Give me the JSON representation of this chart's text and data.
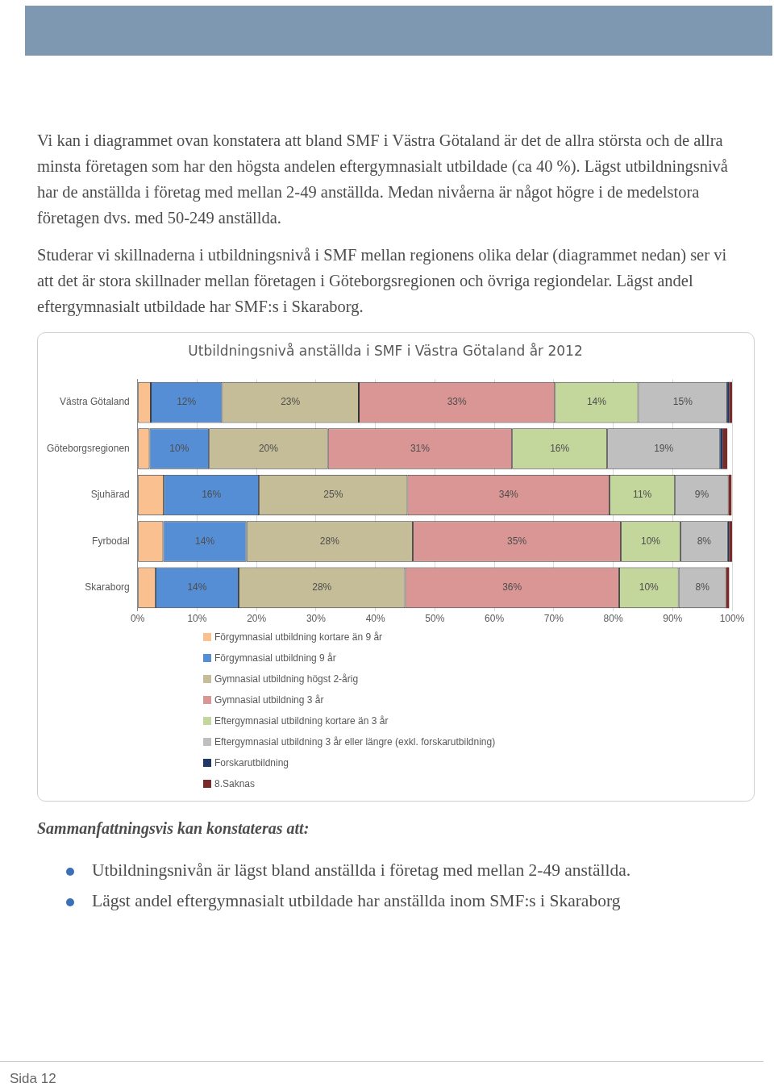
{
  "chart_data": {
    "type": "bar",
    "orientation": "horizontal",
    "stacked": true,
    "title": "Utbildningsnivå anställda i SMF i Västra Götaland år 2012",
    "categories": [
      "Västra Götaland",
      "Göteborgsregionen",
      "Sjuhärad",
      "Fyrbodal",
      "Skaraborg"
    ],
    "series": [
      {
        "name": "Förgymnasial utbildning kortare än 9 år",
        "color": "#fac090",
        "values": [
          2.2,
          2,
          4.4,
          4.3,
          3
        ]
      },
      {
        "name": "Förgymnasial utbildning 9 år",
        "color": "#558ed5",
        "values": [
          12,
          10,
          16,
          14,
          14
        ],
        "value_labels": [
          "12%",
          "10%",
          "16%",
          "14%",
          "14%"
        ]
      },
      {
        "name": "Gymnasial utbildning högst 2-årig",
        "color": "#c4bd97",
        "values": [
          23,
          20,
          25,
          28,
          28
        ],
        "value_labels": [
          "23%",
          "20%",
          "25%",
          "28%",
          "28%"
        ]
      },
      {
        "name": "Gymnasial utbildning 3 år",
        "color": "#d99694",
        "values": [
          33,
          31,
          34,
          35,
          36
        ],
        "value_labels": [
          "33%",
          "31%",
          "34%",
          "35%",
          "36%"
        ]
      },
      {
        "name": "Eftergymnasial utbildning kortare än 3 år",
        "color": "#c3d69b",
        "values": [
          14,
          16,
          11,
          10,
          10
        ],
        "value_labels": [
          "14%",
          "16%",
          "11%",
          "10%",
          "10%"
        ]
      },
      {
        "name": "Eftergymnasial utbildning 3 år eller längre (exkl. forskarutbildning)",
        "color": "#bfbfbf",
        "values": [
          15,
          19,
          9,
          8,
          8
        ],
        "value_labels": [
          "15%",
          "19%",
          "9%",
          "8%",
          "8%"
        ]
      },
      {
        "name": "Forskarutbildning",
        "color": "#1f3864",
        "values": [
          0.3,
          0.4,
          null,
          0.2,
          null
        ]
      },
      {
        "name": "8.Saknas",
        "color": "#772c2a",
        "values": [
          0.5,
          0.8,
          0.5,
          0.5,
          0.5
        ]
      }
    ],
    "xlim": [
      0,
      100
    ],
    "xticks": [
      {
        "value": 0,
        "label": "0%"
      },
      {
        "value": 10,
        "label": "10%"
      },
      {
        "value": 20,
        "label": "20%"
      },
      {
        "value": 30,
        "label": "30%"
      },
      {
        "value": 40,
        "label": "40%"
      },
      {
        "value": 50,
        "label": "50%"
      },
      {
        "value": 60,
        "label": "60%"
      },
      {
        "value": 70,
        "label": "70%"
      },
      {
        "value": 80,
        "label": "80%"
      },
      {
        "value": 90,
        "label": "90%"
      },
      {
        "value": 100,
        "label": "100%"
      }
    ],
    "grid": "x",
    "legend": "bottom",
    "annotations": [
      "Vi kan i diagrammet ovan konstatera att bland SMF i Västra Götaland är det de allra största och de allra minsta företagen som har den högsta andelen eftergymnasialt utbildade (ca 40 %). Lägst utbildningsnivå har de anställda i företag med mellan 2-49 anställda. Medan nivåerna är något högre i de medelstora företagen dvs. med 50-249 anställda.",
      "Studerar vi skillnaderna i utbildningsnivå i SMF mellan regionens olika delar (diagrammet nedan) ser vi att det är stora skillnader mellan företagen i Göteborgsregionen och övriga regiondelar. Lägst andel eftergymnasialt utbildade har SMF:s i Skaraborg.",
      "Sammanfattningsvis kan konstateras att:",
      "Utbildningsnivån är lägst bland anställda i företag med mellan 2-49 anställda.",
      "Lägst andel eftergymnasialt utbildade har anställda inom SMF:s i Skaraborg",
      "Sida 12"
    ]
  }
}
